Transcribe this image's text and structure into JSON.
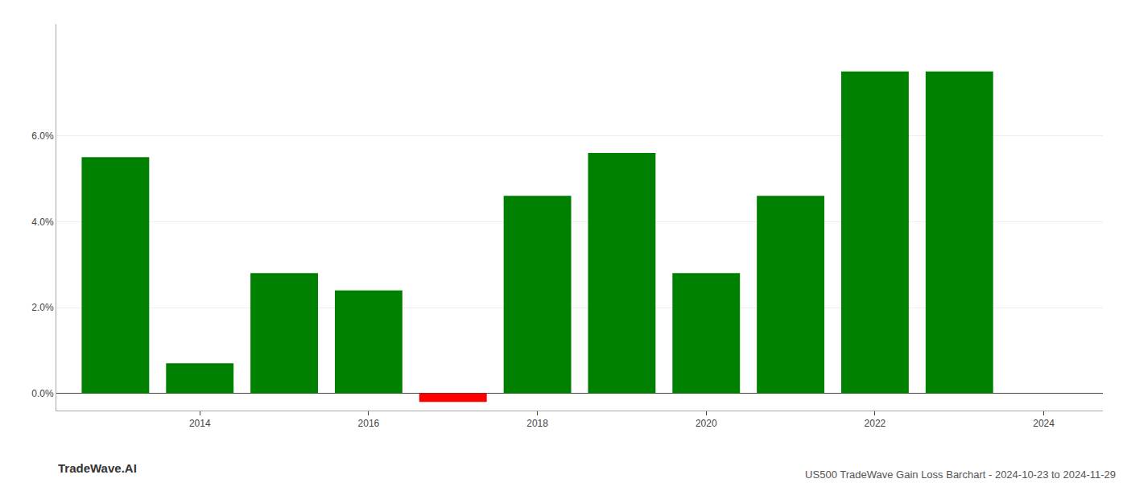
{
  "chart_data": {
    "type": "bar",
    "title": "US500 TradeWave Gain Loss Barchart - 2024-10-23 to 2024-11-29",
    "annotations": [
      "TradeWave.AI"
    ],
    "x": [
      2013,
      2014,
      2015,
      2016,
      2017,
      2018,
      2019,
      2020,
      2021,
      2022,
      2023
    ],
    "values": [
      0.055,
      0.007,
      0.028,
      0.024,
      -0.002,
      0.046,
      0.056,
      0.028,
      0.046,
      0.075,
      0.075
    ],
    "colors": [
      "#008000",
      "#008000",
      "#008000",
      "#008000",
      "#ff0000",
      "#008000",
      "#008000",
      "#008000",
      "#008000",
      "#008000",
      "#008000"
    ],
    "xlim": [
      2012.3,
      2024.7
    ],
    "ylim": [
      -0.004,
      0.086
    ],
    "xticks": [
      2014,
      2016,
      2018,
      2020,
      2022,
      2024
    ],
    "yticks": [
      {
        "value": 0.0,
        "label": "0.0%"
      },
      {
        "value": 0.02,
        "label": "2.0%"
      },
      {
        "value": 0.04,
        "label": "4.0%"
      },
      {
        "value": 0.06,
        "label": "6.0%"
      }
    ],
    "grid": "y"
  }
}
